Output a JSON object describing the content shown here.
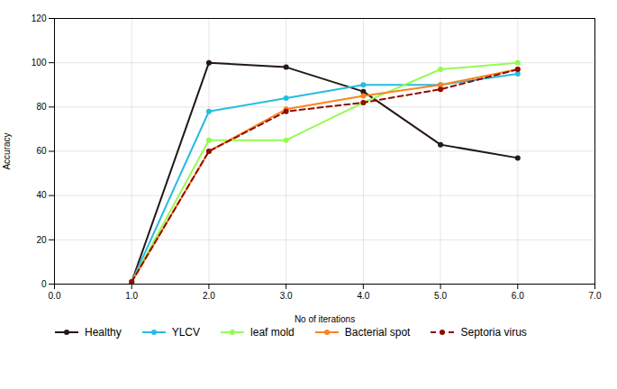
{
  "chart_data": {
    "type": "line",
    "x": [
      1,
      2,
      3,
      4,
      5,
      6
    ],
    "series": [
      {
        "name": "Healthy",
        "values": [
          1,
          100,
          98,
          87,
          63,
          57
        ],
        "line_style": "solid"
      },
      {
        "name": "YLCV",
        "values": [
          1,
          78,
          84,
          90,
          90,
          95
        ],
        "line_style": "solid"
      },
      {
        "name": "leaf mold",
        "values": [
          1,
          65,
          65,
          82,
          97,
          100
        ],
        "line_style": "solid"
      },
      {
        "name": "Bacterial spot",
        "values": [
          1,
          60,
          79,
          85,
          90,
          97
        ],
        "line_style": "solid"
      },
      {
        "name": "Septoria virus",
        "values": [
          1,
          60,
          78,
          82,
          88,
          97
        ],
        "line_style": "dashed"
      }
    ],
    "marker": "circle",
    "xlabel": "No of iterations",
    "ylabel": "Accuracy",
    "xlim": [
      0,
      7
    ],
    "ylim": [
      0,
      120
    ],
    "xticks": [
      0,
      1,
      2,
      3,
      4,
      5,
      6,
      7
    ],
    "yticks": [
      0,
      20,
      40,
      60,
      80,
      100,
      120
    ],
    "grid": true,
    "legend": "bottom"
  }
}
